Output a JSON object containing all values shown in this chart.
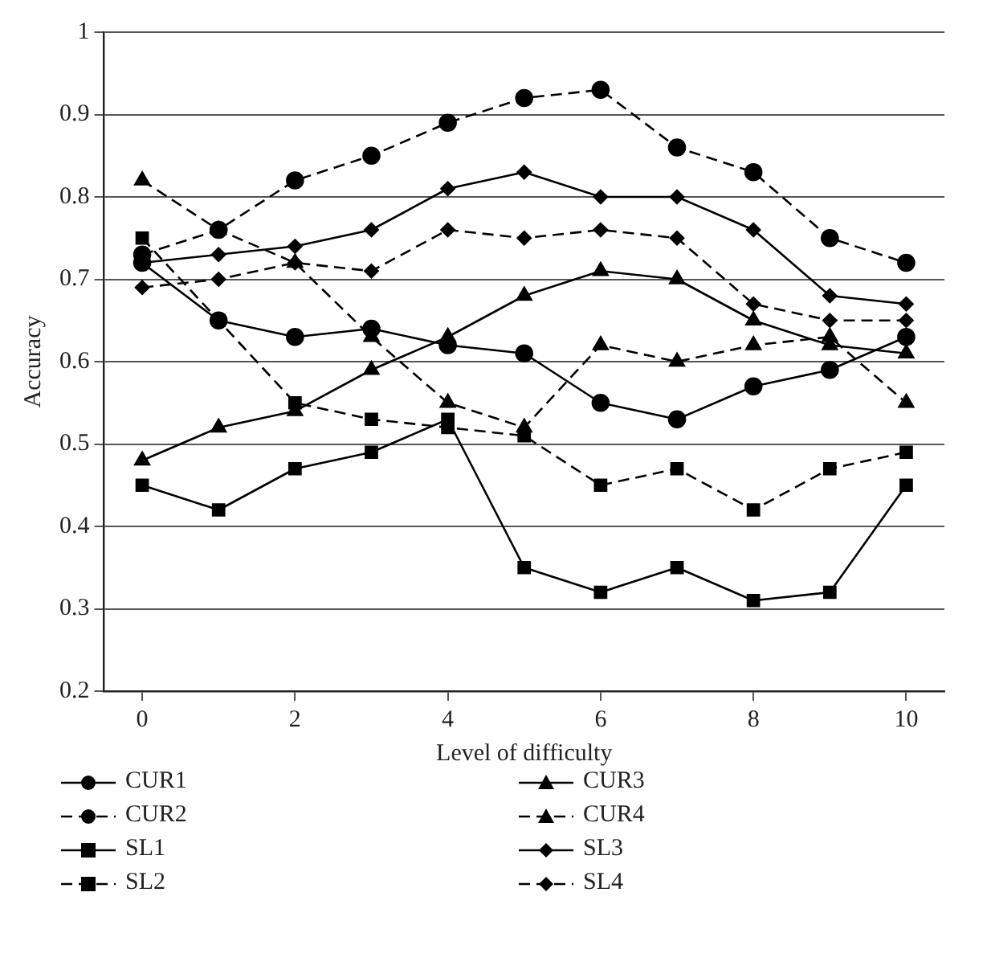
{
  "chart_data": {
    "type": "line",
    "xlabel": "Level of difficulty",
    "ylabel": "Accuracy",
    "x": [
      0,
      1,
      2,
      3,
      4,
      5,
      6,
      7,
      8,
      9,
      10
    ],
    "xlim": [
      -0.5,
      10.5
    ],
    "xticks": [
      0,
      2,
      4,
      6,
      8,
      10
    ],
    "ylim": [
      0.2,
      1
    ],
    "yticks": [
      0.2,
      0.3,
      0.4,
      0.5,
      0.6,
      0.7,
      0.8,
      0.9,
      1
    ],
    "grid": "y",
    "legend": "bottom",
    "series": [
      {
        "name": "CUR1",
        "color": "#000000",
        "marker": "circle",
        "line_style": "solid",
        "values": [
          0.72,
          0.65,
          0.63,
          0.64,
          0.62,
          0.61,
          0.55,
          0.53,
          0.57,
          0.59,
          0.63
        ]
      },
      {
        "name": "CUR3",
        "color": "#000000",
        "marker": "triangle",
        "line_style": "solid",
        "values": [
          0.48,
          0.52,
          0.54,
          0.59,
          0.63,
          0.68,
          0.71,
          0.7,
          0.65,
          0.62,
          0.61
        ]
      },
      {
        "name": "CUR2",
        "color": "#000000",
        "marker": "circle",
        "line_style": "dashed",
        "values": [
          0.73,
          0.76,
          0.82,
          0.85,
          0.89,
          0.92,
          0.93,
          0.86,
          0.83,
          0.75,
          0.72
        ]
      },
      {
        "name": "CUR4",
        "color": "#000000",
        "marker": "triangle",
        "line_style": "dashed",
        "values": [
          0.82,
          0.76,
          0.72,
          0.63,
          0.55,
          0.52,
          0.62,
          0.6,
          0.62,
          0.63,
          0.55
        ]
      },
      {
        "name": "SL1",
        "color": "#000000",
        "marker": "square",
        "line_style": "solid",
        "values": [
          0.45,
          0.42,
          0.47,
          0.49,
          0.53,
          0.35,
          0.32,
          0.35,
          0.31,
          0.32,
          0.45
        ]
      },
      {
        "name": "SL3",
        "color": "#000000",
        "marker": "diamond",
        "line_style": "solid",
        "values": [
          0.72,
          0.73,
          0.74,
          0.76,
          0.81,
          0.83,
          0.8,
          0.8,
          0.76,
          0.68,
          0.67
        ]
      },
      {
        "name": "SL2",
        "color": "#000000",
        "marker": "square",
        "line_style": "dashed",
        "values": [
          0.75,
          0.65,
          0.55,
          0.53,
          0.52,
          0.51,
          0.45,
          0.47,
          0.42,
          0.47,
          0.49
        ]
      },
      {
        "name": "SL4",
        "color": "#000000",
        "marker": "diamond",
        "line_style": "dashed",
        "values": [
          0.69,
          0.7,
          0.72,
          0.71,
          0.76,
          0.75,
          0.76,
          0.75,
          0.67,
          0.65,
          0.65
        ]
      }
    ]
  }
}
